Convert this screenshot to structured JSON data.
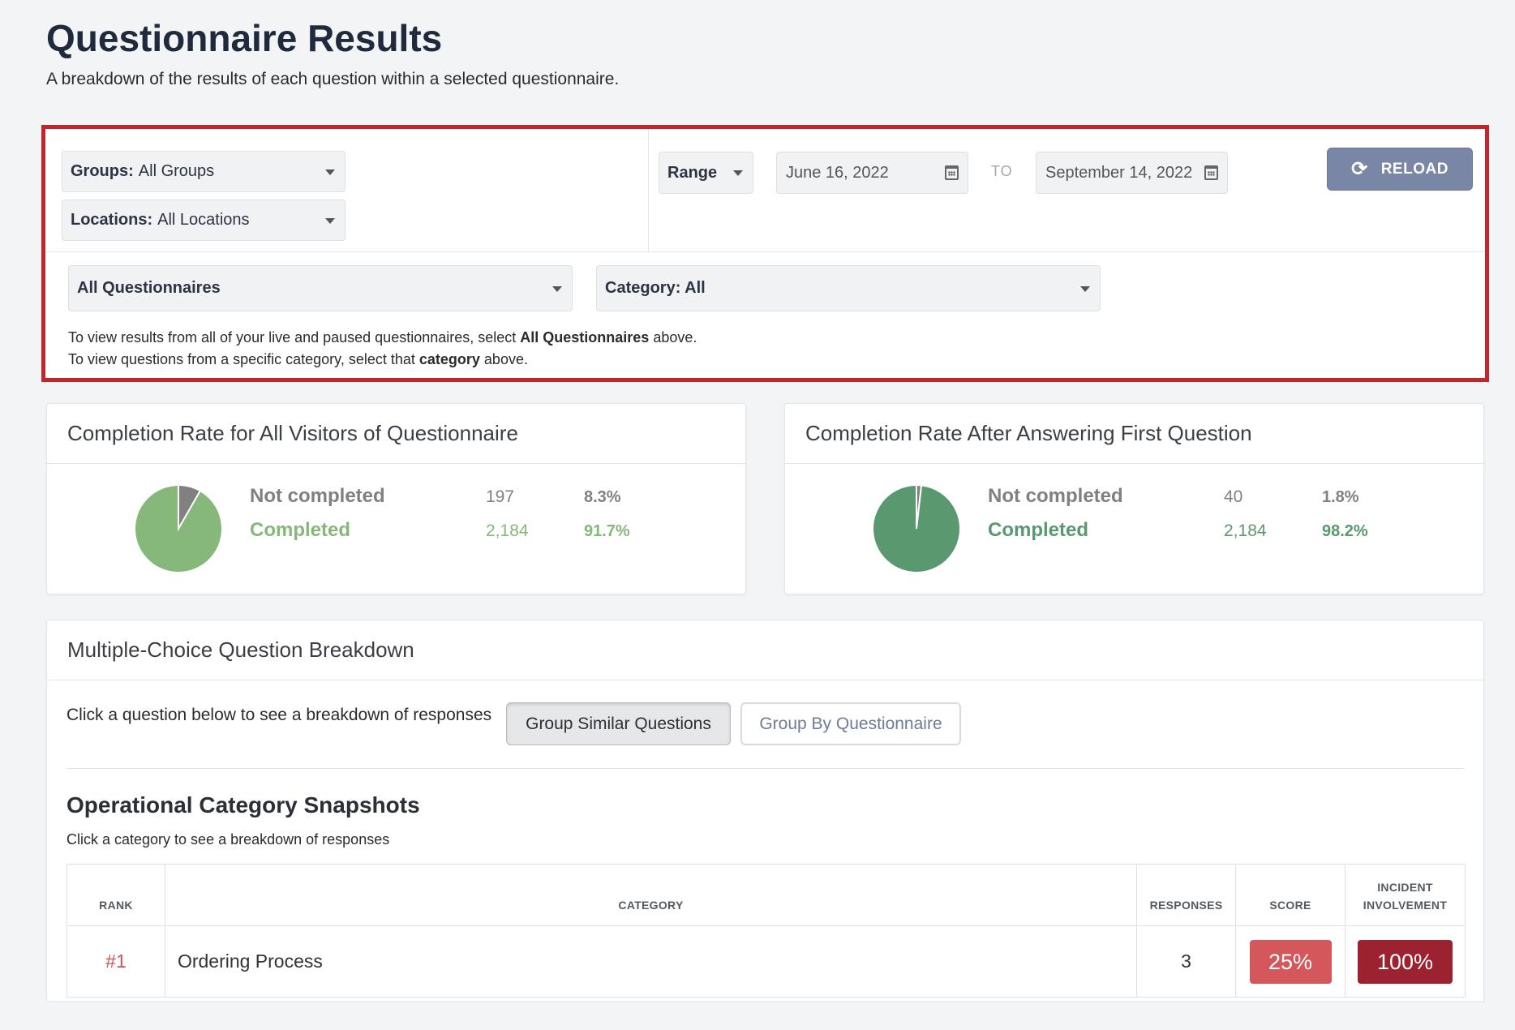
{
  "page": {
    "title": "Questionnaire Results",
    "subtitle": "A breakdown of the results of each question within a selected questionnaire."
  },
  "filters": {
    "groups": {
      "label": "Groups:",
      "value": "All Groups"
    },
    "locations": {
      "label": "Locations:",
      "value": "All Locations"
    },
    "range": {
      "label": "Range"
    },
    "date_from": "June 16, 2022",
    "to_label": "TO",
    "date_to": "September 14, 2022",
    "reload_label": "RELOAD",
    "questionnaire": {
      "value": "All Questionnaires"
    },
    "category": {
      "value": "Category: All"
    },
    "help": {
      "line1_pre": "To view results from all of your live and paused questionnaires, select ",
      "line1_bold": "All Questionnaires",
      "line1_post": " above.",
      "line2_pre": "To view questions from a specific category, select that ",
      "line2_bold": "category",
      "line2_post": " above."
    }
  },
  "completion_all": {
    "title": "Completion Rate for All Visitors of Questionnaire",
    "rows": [
      {
        "label": "Not completed",
        "count": "197",
        "pct": "8.3%",
        "color": "#808080"
      },
      {
        "label": "Completed",
        "count": "2,184",
        "pct": "91.7%",
        "color": "#86b879"
      }
    ],
    "chart_data": {
      "type": "pie",
      "categories": [
        "Not completed",
        "Completed"
      ],
      "values": [
        197,
        2184
      ],
      "percentages": [
        8.3,
        91.7
      ],
      "colors": [
        "#808080",
        "#86b879"
      ]
    }
  },
  "completion_first": {
    "title": "Completion Rate After Answering First Question",
    "rows": [
      {
        "label": "Not completed",
        "count": "40",
        "pct": "1.8%",
        "color": "#808080"
      },
      {
        "label": "Completed",
        "count": "2,184",
        "pct": "98.2%",
        "color": "#5a9870"
      }
    ],
    "chart_data": {
      "type": "pie",
      "categories": [
        "Not completed",
        "Completed"
      ],
      "values": [
        40,
        2184
      ],
      "percentages": [
        1.8,
        98.2
      ],
      "colors": [
        "#808080",
        "#5a9870"
      ]
    }
  },
  "breakdown": {
    "title": "Multiple-Choice Question Breakdown",
    "instruction": "Click a question below to see a breakdown of responses",
    "group_similar_label": "Group Similar Questions",
    "group_by_q_label": "Group By Questionnaire",
    "ops_title": "Operational Category Snapshots",
    "ops_sub": "Click a category to see a breakdown of responses",
    "table": {
      "headers": {
        "rank": "RANK",
        "category": "CATEGORY",
        "responses": "RESPONSES",
        "score": "SCORE",
        "incident_l1": "INCIDENT",
        "incident_l2": "INVOLVEMENT"
      },
      "rows": [
        {
          "rank": "#1",
          "category": "Ordering Process",
          "responses": "3",
          "score": "25%",
          "incident": "100%",
          "score_color": "#d4575c",
          "incident_color": "#9c2230"
        }
      ]
    }
  }
}
